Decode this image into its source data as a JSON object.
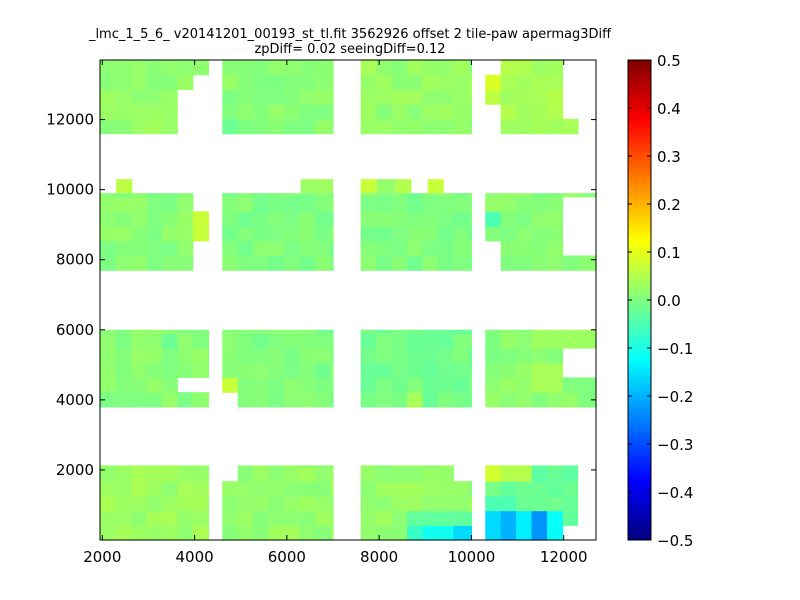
{
  "chart_data": {
    "type": "heatmap",
    "title": "_lmc_1_5_6_ v20141201_00193_st_tl.fit 3562926 offset 2 tile-paw apermag3Diff",
    "subtitle": "zpDiff= 0.02 seeingDiff=0.12",
    "xlabel": "",
    "ylabel": "",
    "xlim": [
      1950,
      12700
    ],
    "ylim": [
      0,
      13700
    ],
    "x_ticks": [
      2000,
      4000,
      6000,
      8000,
      10000,
      12000
    ],
    "y_ticks": [
      2000,
      4000,
      6000,
      8000,
      10000,
      12000
    ],
    "x_tick_labels": [
      "2000",
      "4000",
      "6000",
      "8000",
      "10000",
      "12000"
    ],
    "y_tick_labels": [
      "2000",
      "4000",
      "6000",
      "8000",
      "10000",
      "12000"
    ],
    "cell_size": [
      335,
      420
    ],
    "colormap": "jet",
    "color_range": [
      -0.5,
      0.5
    ],
    "colorbar": {
      "ticks": [
        0.5,
        0.4,
        0.3,
        0.2,
        0.1,
        0.0,
        -0.1,
        -0.2,
        -0.3,
        -0.4,
        -0.5
      ],
      "tick_labels": [
        "0.5",
        "0.4",
        "0.3",
        "0.2",
        "0.1",
        "0.0",
        "−0.1",
        "−0.2",
        "−0.3",
        "−0.4",
        "−0.5"
      ]
    },
    "grid": false,
    "blocks": [
      {
        "x": [
          1950,
          4300
        ],
        "y": [
          0,
          2130
        ],
        "value": 0.03
      },
      {
        "x": [
          4600,
          7000
        ],
        "y": [
          0,
          2130
        ],
        "value": 0.02
      },
      {
        "x": [
          7600,
          10000
        ],
        "y": [
          0,
          2130
        ],
        "value": 0.02
      },
      {
        "x": [
          10300,
          12300
        ],
        "y": [
          0,
          2130
        ],
        "value": -0.02
      },
      {
        "x": [
          1950,
          4300
        ],
        "y": [
          3800,
          6000
        ],
        "value": 0.01
      },
      {
        "x": [
          4600,
          7000
        ],
        "y": [
          3800,
          6000
        ],
        "value": 0.0
      },
      {
        "x": [
          7600,
          10000
        ],
        "y": [
          3800,
          6000
        ],
        "value": -0.01
      },
      {
        "x": [
          10300,
          12700
        ],
        "y": [
          3800,
          6000
        ],
        "value": 0.01
      },
      {
        "x": [
          1950,
          4300
        ],
        "y": [
          7700,
          9900
        ],
        "value": 0.01
      },
      {
        "x": [
          4600,
          7000
        ],
        "y": [
          7700,
          9900
        ],
        "value": 0.0
      },
      {
        "x": [
          7600,
          10000
        ],
        "y": [
          7700,
          9900
        ],
        "value": 0.0
      },
      {
        "x": [
          10300,
          12700
        ],
        "y": [
          7700,
          9900
        ],
        "value": 0.01
      },
      {
        "x": [
          1950,
          4300
        ],
        "y": [
          11600,
          13700
        ],
        "value": 0.02
      },
      {
        "x": [
          4600,
          7000
        ],
        "y": [
          11600,
          13700
        ],
        "value": 0.01
      },
      {
        "x": [
          7600,
          10000
        ],
        "y": [
          11600,
          13700
        ],
        "value": 0.02
      },
      {
        "x": [
          10300,
          12700
        ],
        "y": [
          11600,
          13700
        ],
        "value": 0.04
      }
    ],
    "overrides": [
      {
        "x": [
          8700,
          9100
        ],
        "y": [
          0,
          450
        ],
        "value": -0.07
      },
      {
        "x": [
          9100,
          9700
        ],
        "y": [
          0,
          900
        ],
        "value": -0.11
      },
      {
        "x": [
          9700,
          10000
        ],
        "y": [
          0,
          900
        ],
        "value": -0.16
      },
      {
        "x": [
          10300,
          10600
        ],
        "y": [
          0,
          900
        ],
        "value": -0.16
      },
      {
        "x": [
          10600,
          11000
        ],
        "y": [
          0,
          900
        ],
        "value": -0.2
      },
      {
        "x": [
          11000,
          11300
        ],
        "y": [
          0,
          900
        ],
        "value": -0.14
      },
      {
        "x": [
          11300,
          11700
        ],
        "y": [
          0,
          900
        ],
        "value": -0.23
      },
      {
        "x": [
          11700,
          12000
        ],
        "y": [
          0,
          900
        ],
        "value": -0.12
      },
      {
        "x": [
          10300,
          11000
        ],
        "y": [
          900,
          1300
        ],
        "value": -0.05
      },
      {
        "x": [
          10300,
          10600
        ],
        "y": [
          1700,
          2130
        ],
        "value": 0.08
      },
      {
        "x": [
          10600,
          11300
        ],
        "y": [
          1700,
          2130
        ],
        "value": 0.05
      },
      {
        "x": [
          8700,
          10000
        ],
        "y": [
          450,
          900
        ],
        "value": -0.03
      },
      {
        "x": [
          10300,
          10600
        ],
        "y": [
          8900,
          9300
        ],
        "value": -0.05
      },
      {
        "x": [
          3950,
          4300
        ],
        "y": [
          8700,
          9300
        ],
        "value": 0.07
      },
      {
        "x": [
          4600,
          4950
        ],
        "y": [
          4200,
          4650
        ],
        "value": 0.07
      },
      {
        "x": [
          8600,
          8950
        ],
        "y": [
          4000,
          4400
        ],
        "value": 0.04
      },
      {
        "x": [
          10300,
          10600
        ],
        "y": [
          12700,
          13100
        ],
        "value": 0.09
      },
      {
        "x": [
          10300,
          10600
        ],
        "y": [
          12300,
          12700
        ],
        "value": 0.06
      },
      {
        "x": [
          11300,
          12700
        ],
        "y": [
          5600,
          6000
        ],
        "value": 0.03
      },
      {
        "x": [
          11300,
          12000
        ],
        "y": [
          4400,
          5100
        ],
        "value": 0.04
      },
      {
        "x": [
          4600,
          4950
        ],
        "y": [
          11600,
          12000
        ],
        "value": -0.02
      },
      {
        "x": [
          7600,
          8000
        ],
        "y": [
          13100,
          13700
        ],
        "value": 0.04
      },
      {
        "x": [
          3300,
          3600
        ],
        "y": [
          5300,
          5700
        ],
        "value": -0.02
      }
    ],
    "gaps": [
      {
        "x": [
          4300,
          4600
        ],
        "y": [
          0,
          13700
        ]
      },
      {
        "x": [
          7000,
          7600
        ],
        "y": [
          0,
          13700
        ]
      },
      {
        "x": [
          10000,
          10300
        ],
        "y": [
          0,
          13700
        ]
      },
      {
        "x": [
          1950,
          12700
        ],
        "y": [
          2130,
          3800
        ]
      },
      {
        "x": [
          1950,
          12700
        ],
        "y": [
          6000,
          7700
        ]
      },
      {
        "x": [
          1950,
          12700
        ],
        "y": [
          9900,
          11600
        ]
      },
      {
        "x": [
          12300,
          12700
        ],
        "y": [
          0,
          2130
        ]
      },
      {
        "x": [
          4600,
          4950
        ],
        "y": [
          1700,
          2130
        ]
      },
      {
        "x": [
          9700,
          10000
        ],
        "y": [
          1700,
          2130
        ]
      },
      {
        "x": [
          12000,
          12300
        ],
        "y": [
          0,
          450
        ]
      },
      {
        "x": [
          4600,
          4950
        ],
        "y": [
          3800,
          4200
        ]
      },
      {
        "x": [
          3600,
          4300
        ],
        "y": [
          4200,
          4600
        ]
      },
      {
        "x": [
          12000,
          12700
        ],
        "y": [
          4600,
          5600
        ]
      },
      {
        "x": [
          4300,
          4300
        ],
        "y": [
          0,
          0
        ]
      },
      {
        "x": [
          12000,
          12700
        ],
        "y": [
          8200,
          9800
        ]
      },
      {
        "x": [
          3950,
          4300
        ],
        "y": [
          7700,
          8700
        ]
      },
      {
        "x": [
          3950,
          4300
        ],
        "y": [
          9300,
          9900
        ]
      },
      {
        "x": [
          10300,
          10600
        ],
        "y": [
          7700,
          8700
        ]
      },
      {
        "x": [
          3950,
          4300
        ],
        "y": [
          12800,
          13100
        ]
      },
      {
        "x": [
          3600,
          4300
        ],
        "y": [
          11600,
          12800
        ]
      },
      {
        "x": [
          10300,
          10600
        ],
        "y": [
          11600,
          12300
        ]
      },
      {
        "x": [
          10300,
          10600
        ],
        "y": [
          13100,
          13700
        ]
      },
      {
        "x": [
          12000,
          12700
        ],
        "y": [
          12000,
          13700
        ]
      },
      {
        "x": [
          12300,
          12700
        ],
        "y": [
          11600,
          12000
        ]
      }
    ],
    "stray_cells": [
      {
        "x": [
          2300,
          2650
        ],
        "y": [
          9900,
          10300
        ],
        "value": 0.06
      },
      {
        "x": [
          6300,
          7000
        ],
        "y": [
          9900,
          10300
        ],
        "value": 0.03
      },
      {
        "x": [
          7600,
          7950
        ],
        "y": [
          9900,
          10300
        ],
        "value": 0.07
      },
      {
        "x": [
          7950,
          8350
        ],
        "y": [
          9900,
          10300
        ],
        "value": 0.02
      },
      {
        "x": [
          8350,
          8700
        ],
        "y": [
          9900,
          10300
        ],
        "value": 0.05
      },
      {
        "x": [
          9050,
          9400
        ],
        "y": [
          9900,
          10300
        ],
        "value": 0.07
      }
    ]
  }
}
